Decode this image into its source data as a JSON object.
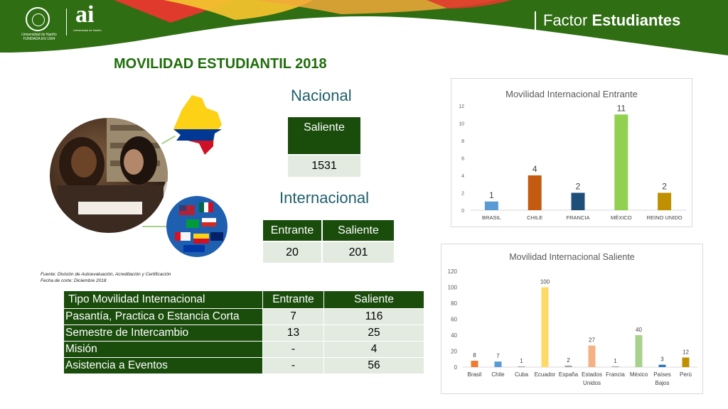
{
  "header": {
    "factor_light": "Factor",
    "factor_bold": "Estudiantes",
    "logo_university": "Universidad de Nariño",
    "logo_founded": "FUNDADA EN 1904",
    "logo_ai": "ai",
    "logo_ai_sub": "Universidad de Nariño",
    "colors": {
      "green": "#2f6e12",
      "yellow": "#f2c12e",
      "red": "#e03a2c"
    }
  },
  "title": "MOVILIDAD ESTUDIANTIL 2018",
  "nacional": {
    "title": "Nacional",
    "header": "Saliente",
    "value": "1531"
  },
  "internacional": {
    "title": "Internacional",
    "headers": [
      "Entrante",
      "Saliente"
    ],
    "values": [
      "20",
      "201"
    ]
  },
  "source": {
    "line1": "Fuente: División de Autoevaluación, Acreditación y  Certificación",
    "line2": "Fecha de corte: Diciembre 2018"
  },
  "tipo_table": {
    "headers": [
      "Tipo Movilidad Internacional",
      "Entrante",
      "Saliente"
    ],
    "rows": [
      [
        "Pasantía, Practica o Estancia Corta",
        "7",
        "116"
      ],
      [
        "Semestre de Intercambio",
        "13",
        "25"
      ],
      [
        "Misión",
        "-",
        "4"
      ],
      [
        "Asistencia a Eventos",
        "-",
        "56"
      ]
    ]
  },
  "chart_data": [
    {
      "type": "bar",
      "title": "Movilidad Internacional Entrante",
      "categories": [
        "BRASIL",
        "CHILE",
        "FRANCIA",
        "MÉXICO",
        "REINO UNIDO"
      ],
      "values": [
        1,
        4,
        2,
        11,
        2
      ],
      "colors": [
        "#5b9bd5",
        "#c55a11",
        "#1f4e79",
        "#92d050",
        "#bf9000"
      ],
      "ylim": [
        0,
        12
      ],
      "yticks": [
        0,
        2,
        4,
        6,
        8,
        10,
        12
      ],
      "grid": false,
      "data_labels": true
    },
    {
      "type": "bar",
      "title": "Movilidad Internacional Saliente",
      "categories": [
        "Brasil",
        "Chile",
        "Cuba",
        "Ecuador",
        "España",
        "Estados Unidos",
        "Francia",
        "México",
        "Países Bajos",
        "Perú"
      ],
      "values": [
        8,
        7,
        1,
        100,
        2,
        27,
        1,
        40,
        3,
        12
      ],
      "colors": [
        "#ed7d31",
        "#5b9bd5",
        "#a5a5a5",
        "#ffd966",
        "#a5a5a5",
        "#f4b183",
        "#a5a5a5",
        "#a9d18e",
        "#2e75b6",
        "#bf9000"
      ],
      "ylim": [
        0,
        120
      ],
      "yticks": [
        0,
        20,
        40,
        60,
        80,
        100,
        120
      ],
      "grid": false,
      "data_labels": true
    }
  ]
}
